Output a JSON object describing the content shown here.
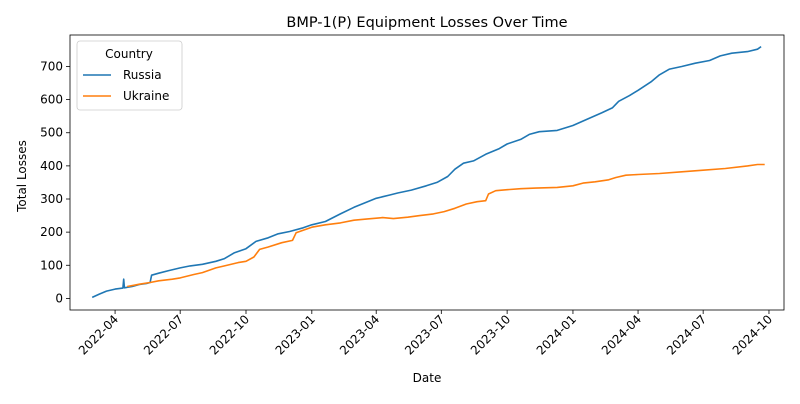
{
  "chart_data": {
    "type": "line",
    "title": "BMP-1(P) Equipment Losses Over Time",
    "xlabel": "Date",
    "ylabel": "Total Losses",
    "x_range": [
      "2022-01-28",
      "2024-10-22"
    ],
    "ylim": [
      -35,
      795
    ],
    "x_ticks": [
      "2022-04",
      "2022-07",
      "2022-10",
      "2023-01",
      "2023-04",
      "2023-07",
      "2023-10",
      "2024-01",
      "2024-04",
      "2024-07",
      "2024-10"
    ],
    "x_tick_dates": [
      "2022-04-01",
      "2022-07-01",
      "2022-10-01",
      "2023-01-01",
      "2023-04-01",
      "2023-07-01",
      "2023-10-01",
      "2024-01-01",
      "2024-04-01",
      "2024-07-01",
      "2024-10-01"
    ],
    "y_ticks": [
      0,
      100,
      200,
      300,
      400,
      500,
      600,
      700
    ],
    "grid": false,
    "legend": {
      "title": "Country",
      "location": "upper-left"
    },
    "series": [
      {
        "name": "Russia",
        "color": "#1f77b4",
        "points": [
          [
            "2022-02-28",
            3
          ],
          [
            "2022-03-10",
            13
          ],
          [
            "2022-03-20",
            22
          ],
          [
            "2022-04-01",
            28
          ],
          [
            "2022-04-12",
            31
          ],
          [
            "2022-04-13",
            58
          ],
          [
            "2022-04-14",
            32
          ],
          [
            "2022-04-25",
            36
          ],
          [
            "2022-05-05",
            42
          ],
          [
            "2022-05-15",
            45
          ],
          [
            "2022-05-20",
            48
          ],
          [
            "2022-05-22",
            70
          ],
          [
            "2022-06-01",
            76
          ],
          [
            "2022-06-15",
            84
          ],
          [
            "2022-07-01",
            92
          ],
          [
            "2022-07-15",
            98
          ],
          [
            "2022-08-01",
            103
          ],
          [
            "2022-08-20",
            112
          ],
          [
            "2022-09-01",
            120
          ],
          [
            "2022-09-15",
            138
          ],
          [
            "2022-10-01",
            150
          ],
          [
            "2022-10-15",
            172
          ],
          [
            "2022-11-01",
            183
          ],
          [
            "2022-11-15",
            195
          ],
          [
            "2022-12-01",
            202
          ],
          [
            "2022-12-20",
            213
          ],
          [
            "2023-01-01",
            222
          ],
          [
            "2023-01-20",
            232
          ],
          [
            "2023-02-10",
            255
          ],
          [
            "2023-03-01",
            275
          ],
          [
            "2023-03-20",
            292
          ],
          [
            "2023-04-01",
            302
          ],
          [
            "2023-04-20",
            312
          ],
          [
            "2023-05-01",
            318
          ],
          [
            "2023-05-20",
            327
          ],
          [
            "2023-06-10",
            340
          ],
          [
            "2023-06-25",
            350
          ],
          [
            "2023-07-10",
            368
          ],
          [
            "2023-07-20",
            390
          ],
          [
            "2023-08-01",
            408
          ],
          [
            "2023-08-15",
            415
          ],
          [
            "2023-09-01",
            435
          ],
          [
            "2023-09-20",
            452
          ],
          [
            "2023-10-01",
            466
          ],
          [
            "2023-10-20",
            480
          ],
          [
            "2023-11-01",
            495
          ],
          [
            "2023-11-15",
            503
          ],
          [
            "2023-12-10",
            507
          ],
          [
            "2024-01-01",
            522
          ],
          [
            "2024-01-20",
            540
          ],
          [
            "2024-02-10",
            560
          ],
          [
            "2024-02-25",
            575
          ],
          [
            "2024-03-05",
            595
          ],
          [
            "2024-03-20",
            612
          ],
          [
            "2024-04-01",
            628
          ],
          [
            "2024-04-20",
            655
          ],
          [
            "2024-05-01",
            675
          ],
          [
            "2024-05-15",
            692
          ],
          [
            "2024-06-01",
            700
          ],
          [
            "2024-06-20",
            710
          ],
          [
            "2024-07-10",
            718
          ],
          [
            "2024-07-25",
            732
          ],
          [
            "2024-08-10",
            740
          ],
          [
            "2024-09-01",
            745
          ],
          [
            "2024-09-15",
            752
          ],
          [
            "2024-09-20",
            760
          ]
        ]
      },
      {
        "name": "Ukraine",
        "color": "#ff7f0e",
        "points": [
          [
            "2022-04-18",
            36
          ],
          [
            "2022-04-28",
            40
          ],
          [
            "2022-05-05",
            43
          ],
          [
            "2022-05-20",
            48
          ],
          [
            "2022-06-01",
            53
          ],
          [
            "2022-06-20",
            58
          ],
          [
            "2022-07-01",
            62
          ],
          [
            "2022-07-20",
            72
          ],
          [
            "2022-08-01",
            78
          ],
          [
            "2022-08-20",
            92
          ],
          [
            "2022-09-01",
            98
          ],
          [
            "2022-09-20",
            108
          ],
          [
            "2022-10-01",
            112
          ],
          [
            "2022-10-12",
            125
          ],
          [
            "2022-10-20",
            148
          ],
          [
            "2022-11-01",
            155
          ],
          [
            "2022-11-20",
            168
          ],
          [
            "2022-12-05",
            175
          ],
          [
            "2022-12-10",
            198
          ],
          [
            "2022-12-20",
            206
          ],
          [
            "2023-01-01",
            215
          ],
          [
            "2023-01-20",
            222
          ],
          [
            "2023-02-10",
            228
          ],
          [
            "2023-03-01",
            236
          ],
          [
            "2023-03-20",
            240
          ],
          [
            "2023-04-10",
            244
          ],
          [
            "2023-04-25",
            241
          ],
          [
            "2023-05-15",
            245
          ],
          [
            "2023-06-01",
            250
          ],
          [
            "2023-06-20",
            255
          ],
          [
            "2023-07-05",
            262
          ],
          [
            "2023-07-20",
            272
          ],
          [
            "2023-08-05",
            285
          ],
          [
            "2023-08-20",
            292
          ],
          [
            "2023-09-01",
            295
          ],
          [
            "2023-09-05",
            315
          ],
          [
            "2023-09-15",
            325
          ],
          [
            "2023-10-01",
            328
          ],
          [
            "2023-10-20",
            331
          ],
          [
            "2023-11-10",
            333
          ],
          [
            "2023-12-10",
            335
          ],
          [
            "2024-01-01",
            340
          ],
          [
            "2024-01-15",
            348
          ],
          [
            "2024-02-01",
            352
          ],
          [
            "2024-02-20",
            358
          ],
          [
            "2024-03-01",
            365
          ],
          [
            "2024-03-15",
            372
          ],
          [
            "2024-04-01",
            374
          ],
          [
            "2024-05-01",
            377
          ],
          [
            "2024-06-01",
            382
          ],
          [
            "2024-07-01",
            387
          ],
          [
            "2024-08-01",
            392
          ],
          [
            "2024-09-01",
            400
          ],
          [
            "2024-09-15",
            404
          ],
          [
            "2024-09-25",
            404
          ]
        ]
      }
    ]
  }
}
